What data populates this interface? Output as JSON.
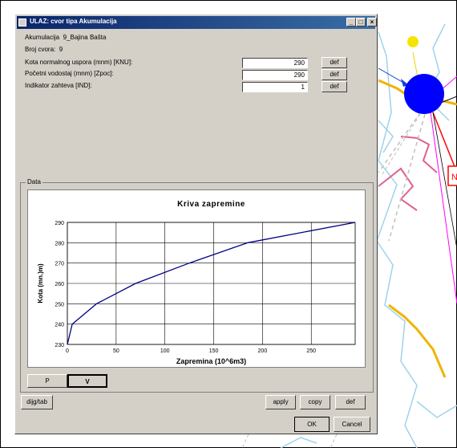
{
  "window": {
    "title": "ULAZ: cvor tipa Akumulacija",
    "akumulacija_label": "Akumulacija",
    "akumulacija_value": "9_Bajina Bašta",
    "broj_cvora_label": "Broj cvora:",
    "broj_cvora_value": "9"
  },
  "params": [
    {
      "label": "Kota normalnog uspora (mnm)   [KNU]:",
      "value": "290",
      "button": "def"
    },
    {
      "label": "Početni vodostaj (mnm)   [Zpoc]:",
      "value": "290",
      "button": "def"
    },
    {
      "label": "Indikator zahteva   [IND]:",
      "value": "1",
      "button": "def"
    }
  ],
  "group": {
    "label": "Data"
  },
  "tabs": {
    "p": "P",
    "v": "V"
  },
  "buttons": {
    "dijg_tab": "dijg/tab",
    "apply": "apply",
    "copy": "copy",
    "def": "def",
    "ok": "OK",
    "cancel": "Cancel"
  },
  "chart_data": {
    "type": "line",
    "title": "Kriva zapremine",
    "xlabel": "Zapremina (10^6m3)",
    "ylabel": "Kota (mn.)m)",
    "x_ticks": [
      0,
      50,
      100,
      150,
      200,
      250
    ],
    "y_ticks": [
      230,
      240,
      250,
      260,
      270,
      280,
      290
    ],
    "xlim": [
      0,
      295
    ],
    "ylim": [
      230,
      290
    ],
    "grid": true,
    "series": [
      {
        "color": "#000080",
        "x": [
          0,
          5,
          30,
          70,
          125,
          185,
          295
        ],
        "y": [
          230,
          240,
          250,
          260,
          270,
          280,
          290
        ]
      }
    ]
  },
  "map": {
    "node_color": "#0000ff",
    "node_label_fragment": "N"
  }
}
